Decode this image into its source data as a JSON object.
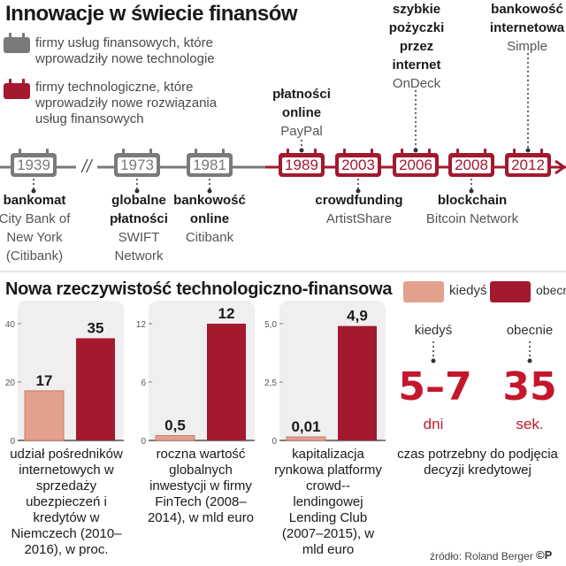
{
  "title": "Innowacje w świecie finansów",
  "legend": {
    "gray": "firmy usług finansowych, które wprowadziły nowe technologie",
    "red": "firmy technologiczne, które wprowadziły nowe rozwiązania usług finansowych"
  },
  "colors": {
    "gray": "#7a7a7a",
    "red": "#a3192e",
    "light": "#e2a08d",
    "accent": "#c4172c"
  },
  "timeline": {
    "break_symbol": "//",
    "years": [
      {
        "year": "1939",
        "kind": "gray"
      },
      {
        "year": "1973",
        "kind": "gray"
      },
      {
        "year": "1981",
        "kind": "gray"
      },
      {
        "year": "1989",
        "kind": "red"
      },
      {
        "year": "2003",
        "kind": "red"
      },
      {
        "year": "2006",
        "kind": "red"
      },
      {
        "year": "2008",
        "kind": "red"
      },
      {
        "year": "2012",
        "kind": "red"
      }
    ],
    "events_below": [
      {
        "name": "bankomat",
        "sub": "City Bank of New York (Citibank)"
      },
      {
        "name": "globalne płatności",
        "sub": "SWIFT Network"
      },
      {
        "name": "bankowość online",
        "sub": "Citibank"
      },
      {
        "name": "crowdfunding",
        "sub": "ArtistShare"
      },
      {
        "name": "blockchain",
        "sub": "Bitcoin Network"
      }
    ],
    "events_above": [
      {
        "name": "płatności online",
        "sub": "PayPal"
      },
      {
        "name": "szybkie pożyczki przez internet",
        "sub": "OnDeck"
      },
      {
        "name": "bankowość internetowa",
        "sub": "Simple"
      }
    ]
  },
  "section2": {
    "title": "Nowa rzeczywistość technologiczno-finansowa",
    "legend_then": "kiedyś",
    "legend_now": "obecnie"
  },
  "chart_data": [
    {
      "type": "bar",
      "categories": [
        "kiedyś",
        "obecnie"
      ],
      "values": [
        17,
        35
      ],
      "value_labels": [
        "17",
        "35"
      ],
      "yticks": [
        "0",
        "20",
        "40"
      ],
      "ylim": [
        0,
        40
      ],
      "caption": "udział pośredników internetowych w sprzedaży ubezpieczeń i kredytów w Niemczech (2010–2016), w proc."
    },
    {
      "type": "bar",
      "categories": [
        "kiedyś",
        "obecnie"
      ],
      "values": [
        0.5,
        12
      ],
      "value_labels": [
        "0,5",
        "12"
      ],
      "yticks": [
        "0",
        "6",
        "12"
      ],
      "ylim": [
        0,
        12
      ],
      "caption": "roczna wartość globalnych inwestycji w firmy FinTech (2008–2014), w mld euro"
    },
    {
      "type": "bar",
      "categories": [
        "kiedyś",
        "obecnie"
      ],
      "values": [
        0.01,
        4.9
      ],
      "value_labels": [
        "0,01",
        "4,9"
      ],
      "yticks": [
        "0",
        "2,5",
        "5,0"
      ],
      "ylim": [
        0,
        5
      ],
      "caption": "kapitalizacja rynkowa platformy crowd--lendingowej Lending Club (2007–2015), w mld euro"
    }
  ],
  "decision": {
    "then_label": "kiedyś",
    "now_label": "obecnie",
    "then_value": "5–7",
    "now_value": "35",
    "then_unit": "dni",
    "now_unit": "sek.",
    "caption": "czas potrzebny do podjęcia decyzji kredytowej"
  },
  "source": "źródło: Roland Berger",
  "logo": "©P"
}
